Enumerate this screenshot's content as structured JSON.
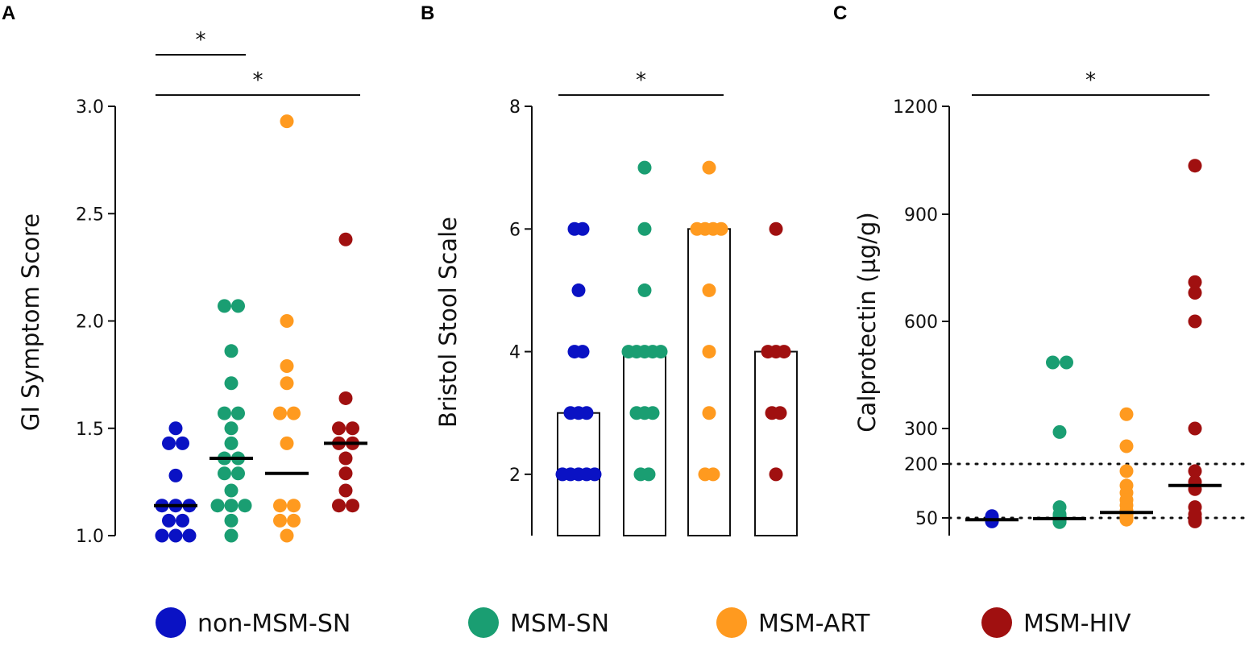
{
  "legend": [
    {
      "label": "non-MSM-SN",
      "color": "#0a12c4"
    },
    {
      "label": "MSM-SN",
      "color": "#1a9e72"
    },
    {
      "label": "MSM-ART",
      "color": "#ff9a1f"
    },
    {
      "label": "MSM-HIV",
      "color": "#a01010"
    }
  ],
  "chart_data": [
    {
      "panel": "A",
      "type": "scatter",
      "ylabel": "GI Symptom Score",
      "ylim": [
        1.0,
        3.0
      ],
      "ticks": [
        1.0,
        1.5,
        2.0,
        2.5,
        3.0
      ],
      "tick_labels": [
        "1.0",
        "1.5",
        "2.0",
        "2.5",
        "3.0"
      ],
      "groups": [
        "non-MSM-SN",
        "MSM-SN",
        "MSM-ART",
        "MSM-HIV"
      ],
      "series": [
        {
          "name": "non-MSM-SN",
          "values": [
            1.5,
            1.43,
            1.43,
            1.28,
            1.14,
            1.14,
            1.14,
            1.07,
            1.07,
            1.0,
            1.0,
            1.0
          ],
          "median": 1.14
        },
        {
          "name": "MSM-SN",
          "values": [
            2.07,
            2.07,
            1.86,
            1.71,
            1.57,
            1.57,
            1.5,
            1.43,
            1.36,
            1.36,
            1.29,
            1.29,
            1.21,
            1.14,
            1.14,
            1.14,
            1.07,
            1.0
          ],
          "median": 1.36
        },
        {
          "name": "MSM-ART",
          "values": [
            2.93,
            2.0,
            1.79,
            1.71,
            1.57,
            1.57,
            1.43,
            1.14,
            1.14,
            1.07,
            1.07,
            1.0
          ],
          "median": 1.29
        },
        {
          "name": "MSM-HIV",
          "values": [
            2.38,
            1.64,
            1.5,
            1.5,
            1.43,
            1.43,
            1.36,
            1.29,
            1.21,
            1.14,
            1.14
          ],
          "median": 1.43
        }
      ],
      "significance": [
        {
          "from": 0,
          "to": 1,
          "label": "*",
          "level": 1
        },
        {
          "from": 0,
          "to": 3,
          "label": "*",
          "level": 0
        }
      ]
    },
    {
      "panel": "B",
      "type": "bar",
      "ylabel": "Bristol Stool Scale",
      "ylim": [
        1.0,
        8.0
      ],
      "ticks": [
        2,
        4,
        6,
        8
      ],
      "tick_labels": [
        "2",
        "4",
        "6",
        "8"
      ],
      "groups": [
        "non-MSM-SN",
        "MSM-SN",
        "MSM-ART",
        "MSM-HIV"
      ],
      "series": [
        {
          "name": "non-MSM-SN",
          "bar": 3,
          "values": [
            6,
            6,
            5,
            4,
            4,
            3,
            3,
            3,
            2,
            2,
            2,
            2,
            2
          ]
        },
        {
          "name": "MSM-SN",
          "bar": 4,
          "values": [
            7,
            6,
            5,
            4,
            4,
            4,
            4,
            4,
            3,
            3,
            3,
            2,
            2
          ]
        },
        {
          "name": "MSM-ART",
          "bar": 6,
          "values": [
            7,
            6,
            6,
            6,
            6,
            5,
            4,
            3,
            2,
            2
          ]
        },
        {
          "name": "MSM-HIV",
          "bar": 4,
          "values": [
            6,
            4,
            4,
            4,
            3,
            3,
            2
          ]
        }
      ],
      "significance": [
        {
          "from": 0,
          "to": 2,
          "label": "*",
          "level": 0
        }
      ]
    },
    {
      "panel": "C",
      "type": "scatter",
      "ylabel": "Calprotectin (µg/g)",
      "ylim": [
        0,
        1200
      ],
      "ticks": [
        50,
        200,
        300,
        600,
        900,
        1200
      ],
      "tick_labels": [
        "50",
        "200",
        "300",
        "600",
        "900",
        "1200"
      ],
      "reference_lines": [
        50,
        200
      ],
      "groups": [
        "non-MSM-SN",
        "MSM-SN",
        "MSM-ART",
        "MSM-HIV"
      ],
      "series": [
        {
          "name": "non-MSM-SN",
          "values": [
            55,
            52,
            50,
            48,
            47,
            46,
            45,
            44,
            43,
            42,
            41,
            40
          ],
          "median": 45
        },
        {
          "name": "MSM-SN",
          "values": [
            485,
            485,
            290,
            80,
            60,
            55,
            50,
            48,
            47,
            46,
            45,
            44,
            43,
            42,
            41,
            40,
            39,
            38
          ],
          "median": 48
        },
        {
          "name": "MSM-ART",
          "values": [
            340,
            250,
            180,
            140,
            120,
            100,
            85,
            70,
            60,
            55,
            50,
            48,
            46,
            45
          ],
          "median": 65
        },
        {
          "name": "MSM-HIV",
          "values": [
            1035,
            710,
            680,
            600,
            300,
            180,
            150,
            130,
            80,
            60,
            50,
            45,
            40
          ],
          "median": 140
        }
      ],
      "significance": [
        {
          "from": 0,
          "to": 3,
          "label": "*",
          "level": 0
        }
      ]
    }
  ]
}
